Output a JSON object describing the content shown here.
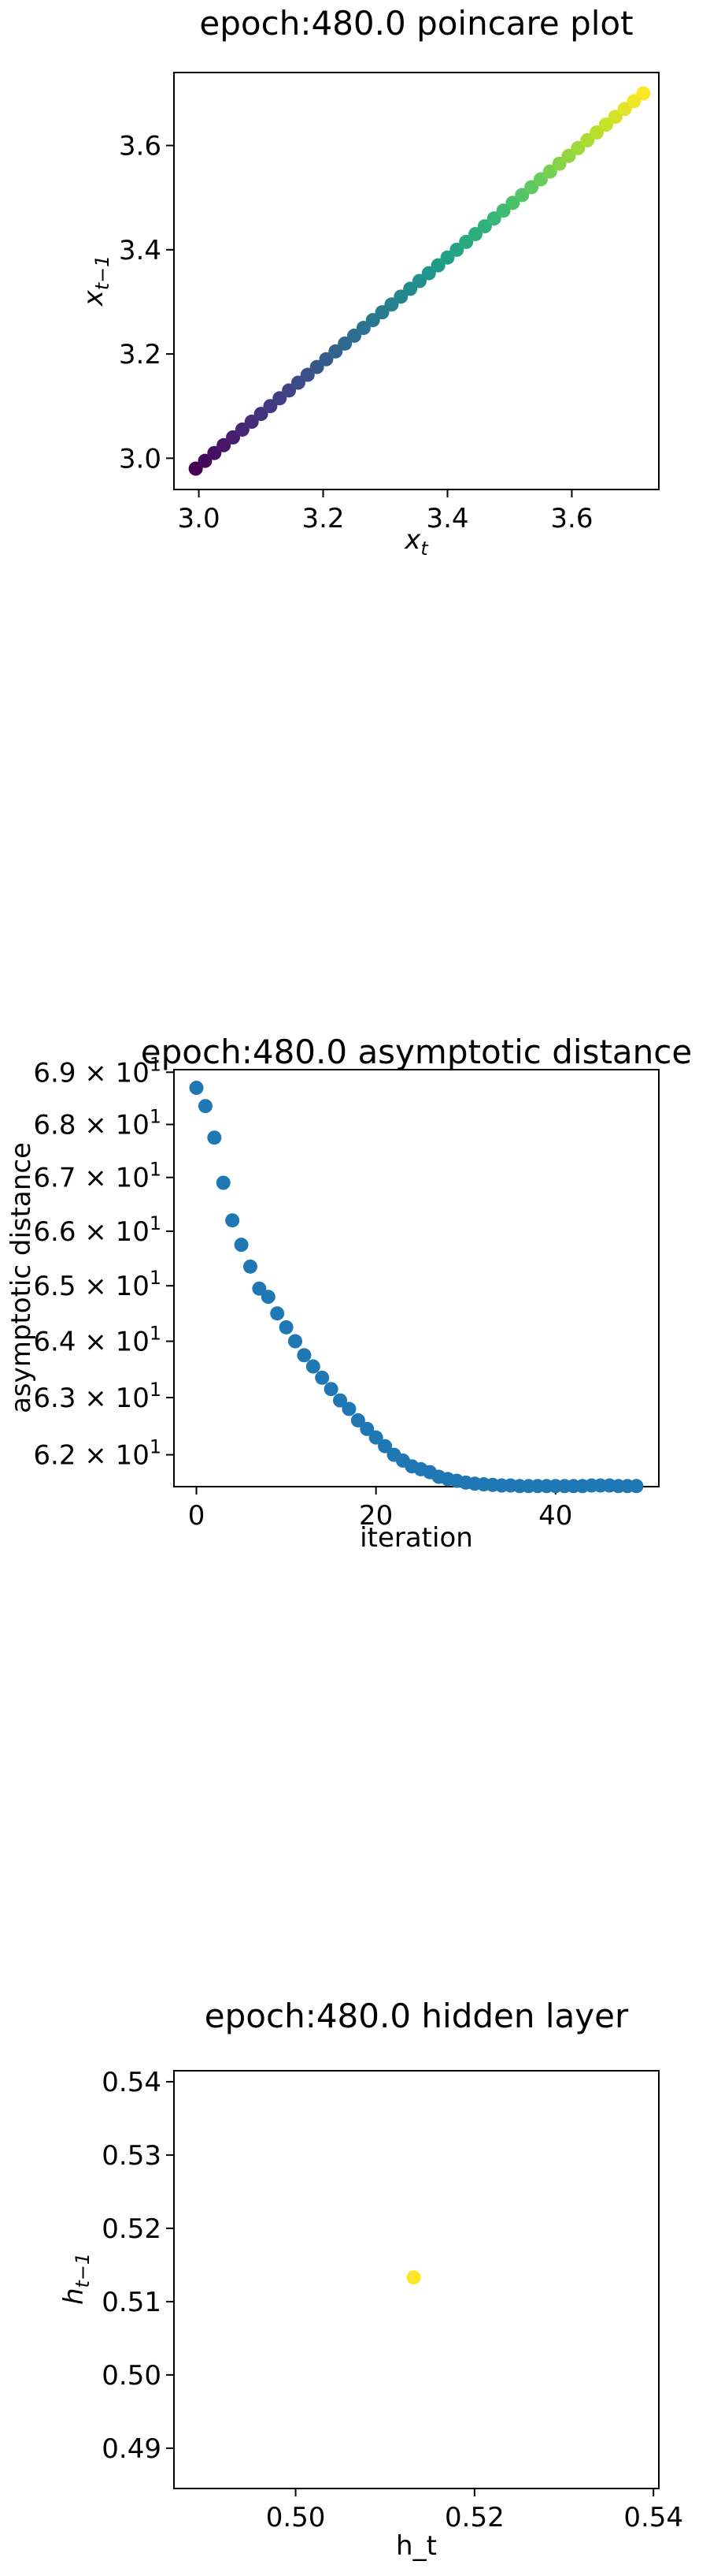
{
  "chart_data": [
    {
      "type": "scatter",
      "title": "epoch:480.0 poincare plot",
      "xlabel": "x_t",
      "ylabel": "x_{t-1}",
      "xlim": [
        2.96,
        3.74
      ],
      "ylim": [
        2.94,
        3.74
      ],
      "xticks": [
        3.0,
        3.2,
        3.4,
        3.6
      ],
      "yticks": [
        3.0,
        3.2,
        3.4,
        3.6
      ],
      "xticklabels": [
        "3.0",
        "3.2",
        "3.4",
        "3.6"
      ],
      "yticklabels": [
        "3.0",
        "3.2",
        "3.4",
        "3.6"
      ],
      "colormap": "viridis",
      "grid": false,
      "points": [
        [
          2.995,
          2.98
        ],
        [
          3.01,
          2.995
        ],
        [
          3.025,
          3.01
        ],
        [
          3.04,
          3.025
        ],
        [
          3.055,
          3.04
        ],
        [
          3.07,
          3.055
        ],
        [
          3.085,
          3.07
        ],
        [
          3.1,
          3.085
        ],
        [
          3.115,
          3.1
        ],
        [
          3.13,
          3.115
        ],
        [
          3.145,
          3.13
        ],
        [
          3.16,
          3.145
        ],
        [
          3.175,
          3.16
        ],
        [
          3.19,
          3.175
        ],
        [
          3.205,
          3.19
        ],
        [
          3.22,
          3.205
        ],
        [
          3.235,
          3.22
        ],
        [
          3.25,
          3.235
        ],
        [
          3.265,
          3.25
        ],
        [
          3.28,
          3.265
        ],
        [
          3.295,
          3.28
        ],
        [
          3.31,
          3.295
        ],
        [
          3.325,
          3.31
        ],
        [
          3.34,
          3.325
        ],
        [
          3.355,
          3.34
        ],
        [
          3.37,
          3.355
        ],
        [
          3.385,
          3.37
        ],
        [
          3.4,
          3.385
        ],
        [
          3.415,
          3.4
        ],
        [
          3.43,
          3.415
        ],
        [
          3.445,
          3.43
        ],
        [
          3.46,
          3.445
        ],
        [
          3.475,
          3.46
        ],
        [
          3.49,
          3.475
        ],
        [
          3.505,
          3.49
        ],
        [
          3.52,
          3.505
        ],
        [
          3.535,
          3.52
        ],
        [
          3.55,
          3.535
        ],
        [
          3.565,
          3.55
        ],
        [
          3.58,
          3.565
        ],
        [
          3.595,
          3.58
        ],
        [
          3.61,
          3.595
        ],
        [
          3.625,
          3.61
        ],
        [
          3.64,
          3.625
        ],
        [
          3.655,
          3.64
        ],
        [
          3.67,
          3.655
        ],
        [
          3.685,
          3.67
        ],
        [
          3.7,
          3.685
        ],
        [
          3.715,
          3.7
        ]
      ]
    },
    {
      "type": "scatter",
      "title": "epoch:480.0 asymptotic distance",
      "xlabel": "iteration",
      "ylabel": "asymptotic distance",
      "xlim": [
        -2.5,
        51.5
      ],
      "ylim": [
        61.45,
        69.05
      ],
      "y_scale": "log",
      "xticks": [
        0,
        20,
        40
      ],
      "xticklabels": [
        "0",
        "20",
        "40"
      ],
      "yticks": [
        62,
        63,
        64,
        65,
        66,
        67,
        68,
        69
      ],
      "yticklabels": [
        {
          "mantissa": "6.2",
          "base": "10",
          "exp": "1"
        },
        {
          "mantissa": "6.3",
          "base": "10",
          "exp": "1"
        },
        {
          "mantissa": "6.4",
          "base": "10",
          "exp": "1"
        },
        {
          "mantissa": "6.5",
          "base": "10",
          "exp": "1"
        },
        {
          "mantissa": "6.6",
          "base": "10",
          "exp": "1"
        },
        {
          "mantissa": "6.7",
          "base": "10",
          "exp": "1"
        },
        {
          "mantissa": "6.8",
          "base": "10",
          "exp": "1"
        },
        {
          "mantissa": "6.9",
          "base": "10",
          "exp": "1"
        }
      ],
      "color": "#1f77b4",
      "grid": false,
      "x": [
        0,
        1,
        2,
        3,
        4,
        5,
        6,
        7,
        8,
        9,
        10,
        11,
        12,
        13,
        14,
        15,
        16,
        17,
        18,
        19,
        20,
        21,
        22,
        23,
        24,
        25,
        26,
        27,
        28,
        29,
        30,
        31,
        32,
        33,
        34,
        35,
        36,
        37,
        38,
        39,
        40,
        41,
        42,
        43,
        44,
        45,
        46,
        47,
        48,
        49
      ],
      "y": [
        68.7,
        68.35,
        67.75,
        66.9,
        66.2,
        65.75,
        65.35,
        64.95,
        64.8,
        64.5,
        64.25,
        64.0,
        63.75,
        63.55,
        63.35,
        63.15,
        62.95,
        62.8,
        62.6,
        62.45,
        62.3,
        62.15,
        62.0,
        61.9,
        61.8,
        61.75,
        61.7,
        61.62,
        61.58,
        61.55,
        61.52,
        61.5,
        61.49,
        61.48,
        61.47,
        61.47,
        61.46,
        61.46,
        61.46,
        61.46,
        61.46,
        61.46,
        61.46,
        61.46,
        61.47,
        61.47,
        61.47,
        61.46,
        61.46,
        61.46
      ]
    },
    {
      "type": "scatter",
      "title": "epoch:480.0 hidden layer",
      "xlabel": "h_t",
      "ylabel": "h_{t-1}",
      "xlim": [
        0.4864,
        0.5406
      ],
      "ylim": [
        0.4845,
        0.5415
      ],
      "xticks": [
        0.5,
        0.52,
        0.54
      ],
      "xticklabels": [
        "0.50",
        "0.52",
        "0.54"
      ],
      "yticks": [
        0.49,
        0.5,
        0.51,
        0.52,
        0.53,
        0.54
      ],
      "yticklabels": [
        "0.49",
        "0.50",
        "0.51",
        "0.52",
        "0.53",
        "0.54"
      ],
      "color": "#fde725",
      "grid": false,
      "points": [
        [
          0.5132,
          0.5133
        ]
      ]
    }
  ]
}
